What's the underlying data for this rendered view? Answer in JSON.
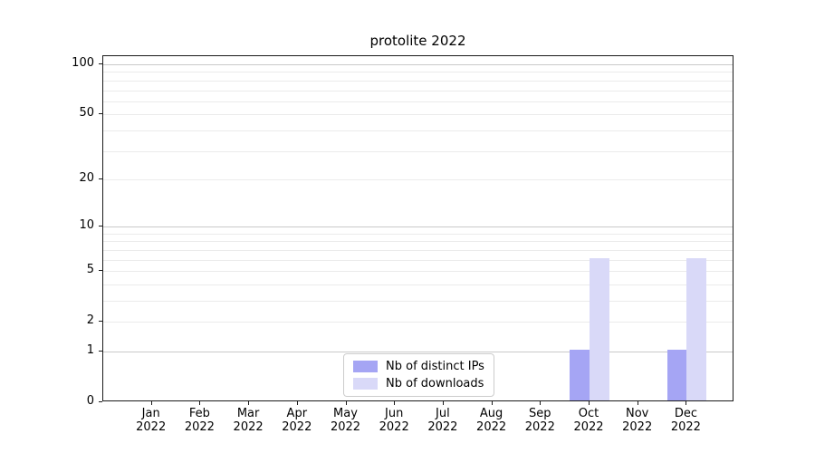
{
  "chart_data": {
    "type": "bar",
    "title": "protolite 2022",
    "categories": [
      "Jan",
      "Feb",
      "Mar",
      "Apr",
      "May",
      "Jun",
      "Jul",
      "Aug",
      "Sep",
      "Oct",
      "Nov",
      "Dec"
    ],
    "year_label": "2022",
    "series": [
      {
        "name": "Nb of distinct IPs",
        "slug": "distinct-ips",
        "color": "#a5a5f4",
        "values": [
          0,
          0,
          0,
          0,
          0,
          0,
          0,
          0,
          0,
          1,
          0,
          1
        ]
      },
      {
        "name": "Nb of downloads",
        "slug": "downloads",
        "color": "#d9d9f8",
        "values": [
          0,
          0,
          0,
          0,
          0,
          0,
          0,
          0,
          0,
          6,
          0,
          6
        ]
      }
    ],
    "y_scale": "log1p",
    "y_tick_labels": [
      0,
      1,
      2,
      5,
      10,
      20,
      50,
      100
    ],
    "major_gridlines": [
      1,
      10,
      100
    ],
    "minor_gridlines": [
      2,
      3,
      4,
      5,
      6,
      7,
      8,
      9,
      20,
      30,
      40,
      50,
      60,
      70,
      80,
      90
    ],
    "ylim": [
      0,
      112
    ],
    "xlabel": "",
    "ylabel": "",
    "grid": true,
    "legend_position": "lower center",
    "colors": {
      "axis": "#1a1a1a",
      "major_grid": "#c9c9c9",
      "minor_grid": "#ebebeb",
      "background": "#ffffff"
    }
  }
}
